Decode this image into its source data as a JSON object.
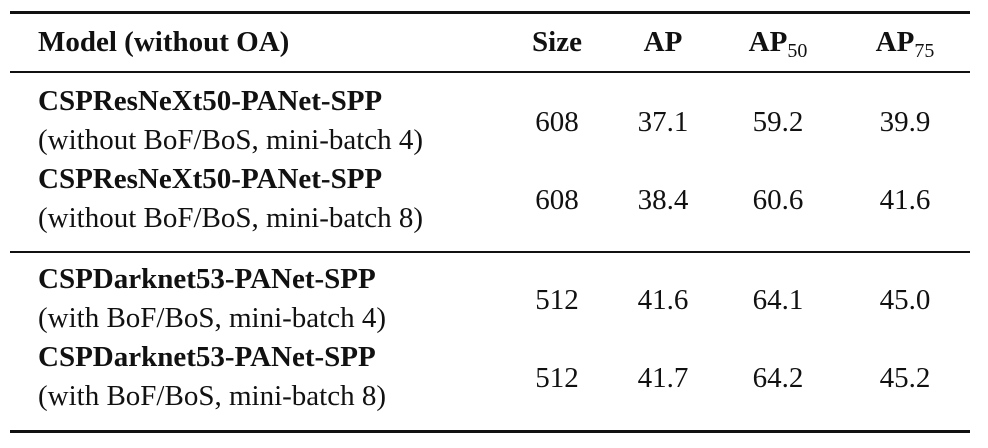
{
  "table": {
    "header": [
      {
        "text": "Model (without OA)"
      },
      {
        "text": "Size"
      },
      {
        "text": "AP"
      },
      {
        "text": "AP",
        "sub": "50"
      },
      {
        "text": "AP",
        "sub": "75"
      }
    ],
    "rows": [
      {
        "model": "CSPResNeXt50-PANet-SPP",
        "setting": "(without BoF/BoS, mini-batch 4)",
        "cells": [
          "608",
          "37.1",
          "59.2",
          "39.9"
        ]
      },
      {
        "model": "CSPResNeXt50-PANet-SPP",
        "setting": "(without BoF/BoS, mini-batch 8)",
        "cells": [
          "608",
          "38.4",
          "60.6",
          "41.6"
        ]
      },
      {
        "model": "CSPDarknet53-PANet-SPP",
        "setting": "(with BoF/BoS, mini-batch 4)",
        "cells": [
          "512",
          "41.6",
          "64.1",
          "45.0"
        ]
      },
      {
        "model": "CSPDarknet53-PANet-SPP",
        "setting": "(with BoF/BoS, mini-batch 8)",
        "cells": [
          "512",
          "41.7",
          "64.2",
          "45.2"
        ]
      }
    ]
  }
}
